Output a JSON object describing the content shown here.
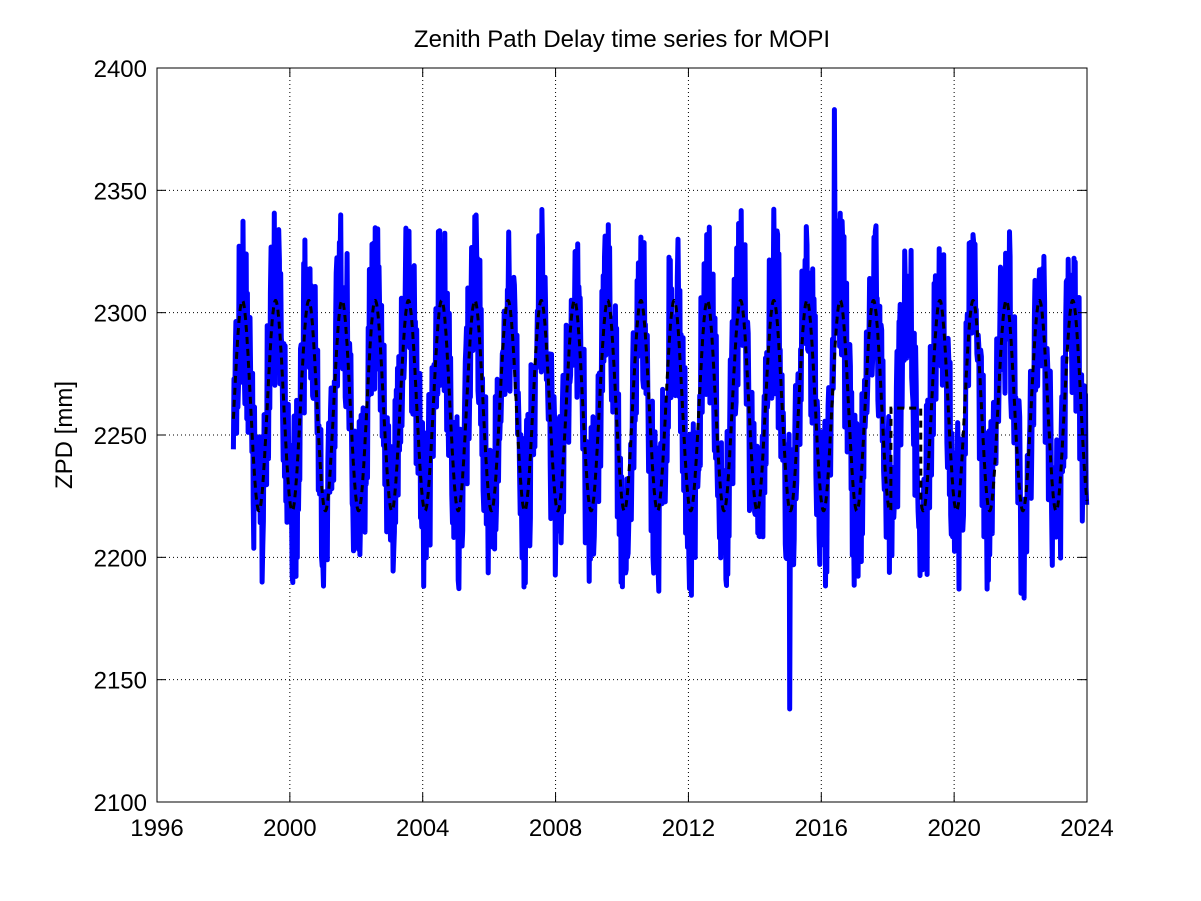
{
  "chart_data": {
    "type": "line",
    "title": "Zenith Path Delay time series for MOPI",
    "xlabel": "",
    "ylabel": "ZPD [mm]",
    "xlim": [
      1996,
      2024
    ],
    "ylim": [
      2100,
      2400
    ],
    "x_ticks": [
      "1996",
      "2000",
      "2004",
      "2008",
      "2012",
      "2016",
      "2020",
      "2024"
    ],
    "y_ticks": [
      "2100",
      "2150",
      "2200",
      "2250",
      "2300",
      "2350",
      "2400"
    ],
    "grid": true,
    "series": [
      {
        "style": "solid",
        "color": "#0000ff",
        "x_start": 1998.3,
        "x_end": 2024.0,
        "mean": 2262,
        "seasonal_amplitude": 43,
        "peak_phase_year_fraction": 0.57,
        "noise_amplitude": 38,
        "max": {
          "x": 2016.4,
          "y": 2383
        },
        "min": {
          "x": 2015.05,
          "y": 2138
        }
      },
      {
        "style": "dashed",
        "color": "#000000",
        "x_start": 1998.3,
        "x_end": 2024.0,
        "mean": 2262,
        "seasonal_amplitude": 43,
        "peak_phase_year_fraction": 0.57,
        "flat_segment": {
          "x_start": 2018.1,
          "x_end": 2019.0,
          "y": 2261
        }
      }
    ]
  }
}
